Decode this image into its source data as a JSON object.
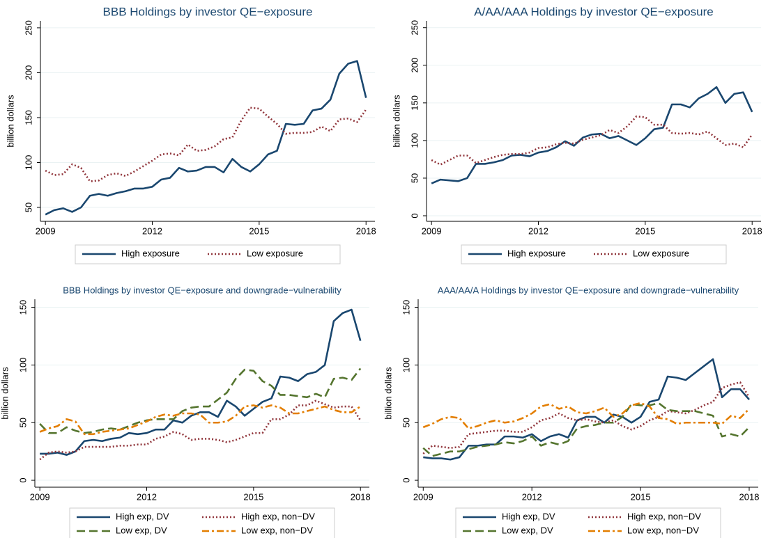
{
  "chart_data": [
    {
      "type": "line",
      "title": "BBB Holdings by investor QE−exposure",
      "ylabel": "billion dollars",
      "x": [
        2009,
        2009.25,
        2009.5,
        2009.75,
        2010,
        2010.25,
        2010.5,
        2010.75,
        2011,
        2011.25,
        2011.5,
        2011.75,
        2012,
        2012.25,
        2012.5,
        2012.75,
        2013,
        2013.25,
        2013.5,
        2013.75,
        2014,
        2014.25,
        2014.5,
        2014.75,
        2015,
        2015.25,
        2015.5,
        2015.75,
        2016,
        2016.25,
        2016.5,
        2016.75,
        2017,
        2017.25,
        2017.5,
        2017.75,
        2018
      ],
      "xlim": [
        2008.86,
        2018.25
      ],
      "xticks": [
        2009,
        2012,
        2015,
        2018
      ],
      "ylim": [
        34.5,
        257.7
      ],
      "yticks": [
        50,
        100,
        150,
        200,
        250
      ],
      "grid": true,
      "legend": "bottom",
      "series": [
        {
          "name": "High exposure",
          "color": "#1a476f",
          "dash": "solid",
          "values": [
            42,
            47,
            49,
            45,
            50,
            63,
            65,
            63,
            66,
            68,
            71,
            71,
            73,
            81,
            83,
            94,
            90,
            91,
            95,
            95,
            89,
            104,
            95,
            90,
            98,
            109,
            113,
            143,
            142,
            143,
            158,
            160,
            170,
            199,
            210,
            213,
            172
          ]
        },
        {
          "name": "Low exposure",
          "color": "#90353b",
          "dash": "dot",
          "values": [
            91,
            86,
            87,
            98,
            94,
            79,
            80,
            86,
            88,
            85,
            90,
            96,
            102,
            109,
            110,
            108,
            120,
            113,
            114,
            118,
            126,
            128,
            147,
            161,
            160,
            151,
            143,
            132,
            133,
            133,
            134,
            140,
            135,
            148,
            149,
            145,
            159
          ]
        }
      ]
    },
    {
      "type": "line",
      "title": "A/AA/AAA Holdings by investor QE−exposure",
      "ylabel": "billion dollars",
      "x": [
        2009,
        2009.25,
        2009.5,
        2009.75,
        2010,
        2010.25,
        2010.5,
        2010.75,
        2011,
        2011.25,
        2011.5,
        2011.75,
        2012,
        2012.25,
        2012.5,
        2012.75,
        2013,
        2013.25,
        2013.5,
        2013.75,
        2014,
        2014.25,
        2014.5,
        2014.75,
        2015,
        2015.25,
        2015.5,
        2015.75,
        2016,
        2016.25,
        2016.5,
        2016.75,
        2017,
        2017.25,
        2017.5,
        2017.75,
        2018
      ],
      "xlim": [
        2008.86,
        2018.25
      ],
      "xticks": [
        2009,
        2012,
        2015,
        2018
      ],
      "ylim": [
        -7.4,
        259
      ],
      "yticks": [
        0,
        50,
        100,
        150,
        200,
        250
      ],
      "grid": true,
      "legend": "bottom",
      "series": [
        {
          "name": "High exposure",
          "color": "#1a476f",
          "dash": "solid",
          "values": [
            43,
            48,
            47,
            46,
            50,
            69,
            69,
            71,
            74,
            80,
            81,
            79,
            84,
            86,
            91,
            99,
            93,
            104,
            108,
            109,
            103,
            106,
            100,
            94,
            103,
            115,
            117,
            148,
            148,
            144,
            156,
            162,
            171,
            150,
            162,
            164,
            138
          ]
        },
        {
          "name": "Low exposure",
          "color": "#90353b",
          "dash": "dot",
          "values": [
            74,
            68,
            74,
            80,
            80,
            70,
            74,
            78,
            81,
            82,
            82,
            84,
            90,
            91,
            95,
            97,
            96,
            101,
            104,
            107,
            114,
            110,
            119,
            132,
            131,
            121,
            121,
            110,
            109,
            110,
            108,
            112,
            103,
            94,
            96,
            91,
            108
          ]
        }
      ]
    },
    {
      "type": "line",
      "title": "BBB Holdings by investor QE−exposure and downgrade−vulnerability",
      "ylabel": "billion dollars",
      "x": [
        2009,
        2009.25,
        2009.5,
        2009.75,
        2010,
        2010.25,
        2010.5,
        2010.75,
        2011,
        2011.25,
        2011.5,
        2011.75,
        2012,
        2012.25,
        2012.5,
        2012.75,
        2013,
        2013.25,
        2013.5,
        2013.75,
        2014,
        2014.25,
        2014.5,
        2014.75,
        2015,
        2015.25,
        2015.5,
        2015.75,
        2016,
        2016.25,
        2016.5,
        2016.75,
        2017,
        2017.25,
        2017.5,
        2017.75,
        2018
      ],
      "xlim": [
        2008.86,
        2018.25
      ],
      "xticks": [
        2009,
        2012,
        2015,
        2018
      ],
      "ylim": [
        -6,
        157
      ],
      "yticks": [
        0,
        50,
        100,
        150
      ],
      "grid": true,
      "legend": "bottom",
      "series": [
        {
          "name": "High exp, DV",
          "color": "#1a476f",
          "dash": "solid",
          "values": [
            23,
            23,
            24,
            22,
            25,
            34,
            35,
            34,
            36,
            37,
            41,
            40,
            41,
            44,
            44,
            52,
            50,
            56,
            59,
            59,
            55,
            69,
            64,
            56,
            62,
            68,
            71,
            90,
            89,
            86,
            92,
            94,
            100,
            138,
            145,
            148,
            121
          ]
        },
        {
          "name": "High exp, non−DV",
          "color": "#90353b",
          "dash": "dot",
          "values": [
            18,
            24,
            25,
            24,
            25,
            29,
            29,
            29,
            29,
            30,
            30,
            31,
            31,
            36,
            38,
            42,
            40,
            35,
            36,
            36,
            35,
            33,
            35,
            38,
            41,
            41,
            53,
            53,
            57,
            65,
            65,
            69,
            66,
            63,
            64,
            64,
            52
          ]
        },
        {
          "name": "Low exp, DV",
          "color": "#55752f",
          "dash": "dash",
          "values": [
            49,
            41,
            41,
            46,
            43,
            41,
            42,
            44,
            45,
            44,
            47,
            50,
            52,
            53,
            53,
            53,
            60,
            63,
            64,
            64,
            70,
            76,
            88,
            96,
            95,
            86,
            82,
            74,
            74,
            73,
            72,
            75,
            72,
            88,
            89,
            87,
            97
          ]
        },
        {
          "name": "Low exp, non−DV",
          "color": "#e37e00",
          "dash": "dashdot",
          "values": [
            42,
            45,
            47,
            53,
            51,
            40,
            40,
            42,
            43,
            44,
            45,
            48,
            51,
            55,
            57,
            56,
            58,
            58,
            57,
            50,
            50,
            51,
            56,
            64,
            65,
            63,
            65,
            63,
            58,
            58,
            60,
            62,
            64,
            61,
            59,
            59,
            64
          ]
        }
      ]
    },
    {
      "type": "line",
      "title": "AAA/AA/A Holdings by investor QE−exposure and downgrade−vulnerability",
      "ylabel": "billion dollars",
      "x": [
        2009,
        2009.25,
        2009.5,
        2009.75,
        2010,
        2010.25,
        2010.5,
        2010.75,
        2011,
        2011.25,
        2011.5,
        2011.75,
        2012,
        2012.25,
        2012.5,
        2012.75,
        2013,
        2013.25,
        2013.5,
        2013.75,
        2014,
        2014.25,
        2014.5,
        2014.75,
        2015,
        2015.25,
        2015.5,
        2015.75,
        2016,
        2016.25,
        2016.5,
        2016.75,
        2017,
        2017.25,
        2017.5,
        2017.75,
        2018
      ],
      "xlim": [
        2008.86,
        2018.25
      ],
      "xticks": [
        2009,
        2012,
        2015,
        2018
      ],
      "ylim": [
        -6,
        157
      ],
      "yticks": [
        0,
        50,
        100,
        150
      ],
      "grid": true,
      "legend": "bottom",
      "series": [
        {
          "name": "High exp, DV",
          "color": "#1a476f",
          "dash": "solid",
          "values": [
            20,
            19,
            19,
            18,
            20,
            30,
            30,
            31,
            31,
            38,
            38,
            37,
            40,
            34,
            38,
            40,
            37,
            52,
            55,
            55,
            50,
            57,
            55,
            50,
            55,
            68,
            70,
            90,
            89,
            87,
            93,
            99,
            105,
            72,
            79,
            79,
            70
          ]
        },
        {
          "name": "High exp, non−DV",
          "color": "#90353b",
          "dash": "dot",
          "values": [
            23,
            30,
            29,
            28,
            29,
            40,
            41,
            42,
            43,
            43,
            42,
            42,
            46,
            52,
            54,
            58,
            54,
            52,
            53,
            51,
            50,
            52,
            47,
            44,
            47,
            52,
            55,
            60,
            59,
            58,
            61,
            65,
            68,
            80,
            83,
            85,
            72
          ]
        },
        {
          "name": "Low exp, DV",
          "color": "#55752f",
          "dash": "dash",
          "values": [
            28,
            21,
            23,
            25,
            25,
            27,
            29,
            30,
            31,
            33,
            32,
            34,
            38,
            30,
            33,
            31,
            34,
            45,
            47,
            48,
            50,
            50,
            55,
            66,
            65,
            65,
            67,
            61,
            60,
            60,
            60,
            58,
            56,
            38,
            40,
            38,
            46
          ]
        },
        {
          "name": "Low exp, non−DV",
          "color": "#e37e00",
          "dash": "dashdot",
          "values": [
            46,
            49,
            53,
            55,
            54,
            45,
            47,
            50,
            52,
            50,
            51,
            54,
            58,
            64,
            66,
            62,
            64,
            59,
            58,
            60,
            63,
            55,
            58,
            65,
            67,
            64,
            54,
            53,
            49,
            50,
            50,
            50,
            50,
            49,
            56,
            54,
            62
          ]
        }
      ]
    }
  ]
}
